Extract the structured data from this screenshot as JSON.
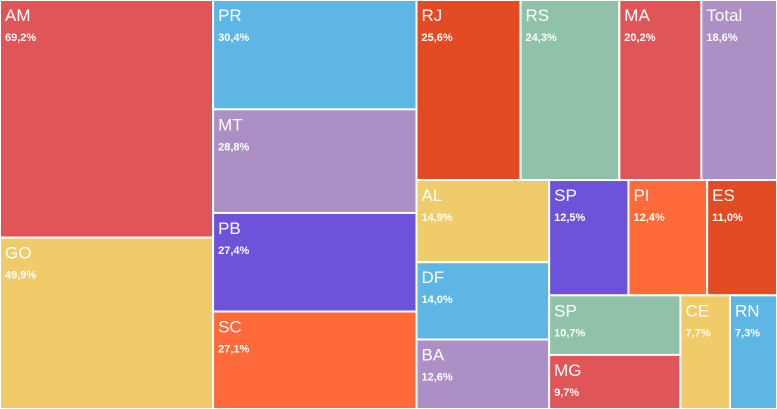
{
  "chart_data": {
    "type": "treemap",
    "categories": [
      "AM",
      "GO",
      "PR",
      "MT",
      "PB",
      "SC",
      "RJ",
      "RS",
      "MA",
      "Total",
      "AL",
      "DF",
      "BA",
      "SP",
      "PI",
      "ES",
      "SP",
      "MG",
      "CE",
      "RN"
    ],
    "values": [
      69.2,
      49.9,
      30.4,
      28.8,
      27.4,
      27.1,
      25.6,
      24.3,
      20.2,
      18.6,
      14.9,
      14.0,
      12.6,
      12.5,
      12.4,
      11.0,
      10.7,
      9.7,
      7.7,
      7.3
    ],
    "value_labels": [
      "69,2%",
      "49,9%",
      "30,4%",
      "28,8%",
      "27,4%",
      "27,1%",
      "25,6%",
      "24,3%",
      "20,2%",
      "18,6%",
      "14,9%",
      "14,0%",
      "12,6%",
      "12,5%",
      "12,4%",
      "11,0%",
      "10,7%",
      "9,7%",
      "7,7%",
      "7,3%"
    ],
    "colors": [
      "#e05557",
      "#f0cb69",
      "#5db6e4",
      "#ac8fc5",
      "#6c53d9",
      "#fe6a3a",
      "#e34b24",
      "#8fc2a9",
      "#e05557",
      "#ac8fc5",
      "#f0cb69",
      "#5db6e4",
      "#ac8fc5",
      "#6c53d9",
      "#fe6a3a",
      "#e34b24",
      "#8fc2a9",
      "#e05557",
      "#f0cb69",
      "#5db6e4"
    ]
  }
}
